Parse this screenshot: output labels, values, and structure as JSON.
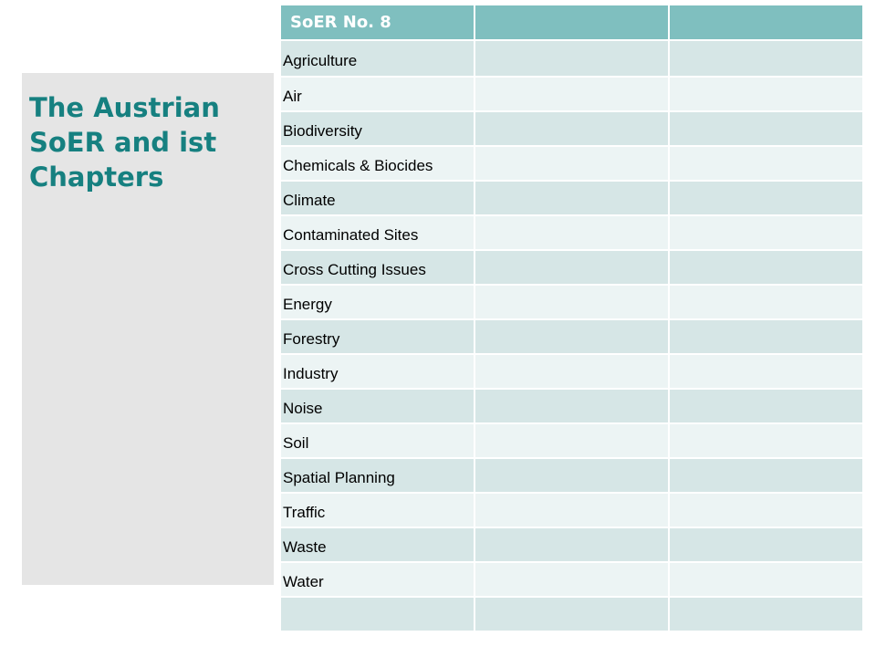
{
  "side": {
    "title": "The Austrian SoER and ist Chapters"
  },
  "table": {
    "header": [
      "SoER No. 8",
      "",
      ""
    ],
    "rows": [
      "Agriculture",
      "Air",
      "Biodiversity",
      "Chemicals & Biocides",
      "Climate",
      "Contaminated Sites",
      "Cross Cutting Issues",
      "Energy",
      "Forestry",
      "Industry",
      "Noise",
      "Soil",
      "Spatial Planning",
      "Traffic",
      "Waste",
      "Water",
      ""
    ]
  }
}
